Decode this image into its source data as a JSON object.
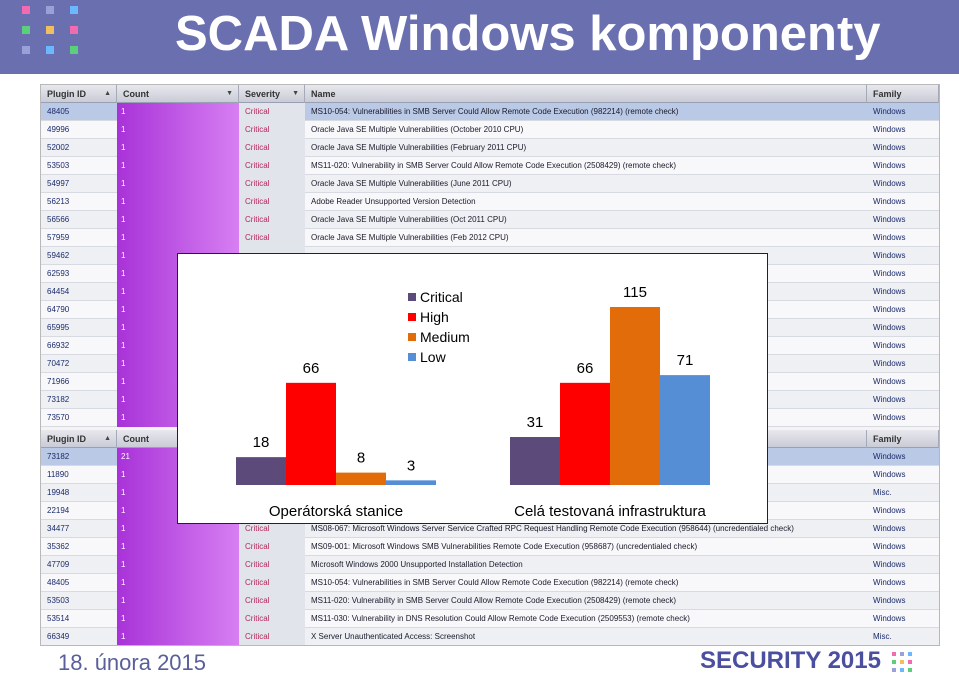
{
  "header": {
    "title": "SCADA Windows komponenty",
    "background": "#6a6fb0",
    "logo_dot_colors": [
      "#f06bb0",
      "#9aa0d8",
      "#6cb8ff",
      "#5ccf7a",
      "#f0c060"
    ]
  },
  "table1": {
    "columns": [
      "Plugin ID",
      "Count",
      "Severity",
      "Name",
      "Family"
    ],
    "rows": [
      {
        "id": "48405",
        "count": "1",
        "severity": "Critical",
        "name": "MS10-054: Vulnerabilities in SMB Server Could Allow Remote Code Execution (982214) (remote check)",
        "family": "Windows"
      },
      {
        "id": "49996",
        "count": "1",
        "severity": "Critical",
        "name": "Oracle Java SE Multiple Vulnerabilities (October 2010 CPU)",
        "family": "Windows"
      },
      {
        "id": "52002",
        "count": "1",
        "severity": "Critical",
        "name": "Oracle Java SE Multiple Vulnerabilities (February 2011 CPU)",
        "family": "Windows"
      },
      {
        "id": "53503",
        "count": "1",
        "severity": "Critical",
        "name": "MS11-020: Vulnerability in SMB Server Could Allow Remote Code Execution (2508429) (remote check)",
        "family": "Windows"
      },
      {
        "id": "54997",
        "count": "1",
        "severity": "Critical",
        "name": "Oracle Java SE Multiple Vulnerabilities (June 2011 CPU)",
        "family": "Windows"
      },
      {
        "id": "56213",
        "count": "1",
        "severity": "Critical",
        "name": "Adobe Reader Unsupported Version Detection",
        "family": "Windows"
      },
      {
        "id": "56566",
        "count": "1",
        "severity": "Critical",
        "name": "Oracle Java SE Multiple Vulnerabilities (Oct 2011 CPU)",
        "family": "Windows"
      },
      {
        "id": "57959",
        "count": "1",
        "severity": "Critical",
        "name": "Oracle Java SE Multiple Vulnerabilities (Feb 2012 CPU)",
        "family": "Windows"
      },
      {
        "id": "59462",
        "count": "1",
        "severity": "",
        "name": "",
        "family": "Windows"
      },
      {
        "id": "62593",
        "count": "1",
        "severity": "",
        "name": "",
        "family": "Windows"
      },
      {
        "id": "64454",
        "count": "1",
        "severity": "",
        "name": "",
        "family": "Windows"
      },
      {
        "id": "64790",
        "count": "1",
        "severity": "",
        "name": "",
        "family": "Windows"
      },
      {
        "id": "65995",
        "count": "1",
        "severity": "",
        "name": "",
        "family": "Windows"
      },
      {
        "id": "66932",
        "count": "1",
        "severity": "",
        "name": "",
        "family": "Windows"
      },
      {
        "id": "70472",
        "count": "1",
        "severity": "",
        "name": "",
        "family": "Windows"
      },
      {
        "id": "71966",
        "count": "1",
        "severity": "",
        "name": "",
        "family": "Windows"
      },
      {
        "id": "73182",
        "count": "1",
        "severity": "",
        "name": "",
        "family": "Windows"
      },
      {
        "id": "73570",
        "count": "1",
        "severity": "",
        "name": "",
        "family": "Windows"
      }
    ]
  },
  "table2": {
    "columns": [
      "Plugin ID",
      "Count",
      "Severity",
      "Name",
      "Family"
    ],
    "rows": [
      {
        "id": "73182",
        "count": "21",
        "severity": "",
        "name": "",
        "family": "Windows"
      },
      {
        "id": "11890",
        "count": "1",
        "severity": "",
        "name": "",
        "family": "Windows"
      },
      {
        "id": "19948",
        "count": "1",
        "severity": "",
        "name": "",
        "family": "Misc."
      },
      {
        "id": "22194",
        "count": "1",
        "severity": "",
        "name": "",
        "family": "Windows"
      },
      {
        "id": "34477",
        "count": "1",
        "severity": "Critical",
        "name": "MS08-067: Microsoft Windows Server Service Crafted RPC Request Handling Remote Code Execution (958644) (uncredentialed check)",
        "family": "Windows"
      },
      {
        "id": "35362",
        "count": "1",
        "severity": "Critical",
        "name": "MS09-001: Microsoft Windows SMB Vulnerabilities Remote Code Execution (958687) (uncredentialed check)",
        "family": "Windows"
      },
      {
        "id": "47709",
        "count": "1",
        "severity": "Critical",
        "name": "Microsoft Windows 2000 Unsupported Installation Detection",
        "family": "Windows"
      },
      {
        "id": "48405",
        "count": "1",
        "severity": "Critical",
        "name": "MS10-054: Vulnerabilities in SMB Server Could Allow Remote Code Execution (982214) (remote check)",
        "family": "Windows"
      },
      {
        "id": "53503",
        "count": "1",
        "severity": "Critical",
        "name": "MS11-020: Vulnerability in SMB Server Could Allow Remote Code Execution (2508429) (remote check)",
        "family": "Windows"
      },
      {
        "id": "53514",
        "count": "1",
        "severity": "Critical",
        "name": "MS11-030: Vulnerability in DNS Resolution Could Allow Remote Code Execution (2509553) (remote check)",
        "family": "Windows"
      },
      {
        "id": "66349",
        "count": "1",
        "severity": "Critical",
        "name": "X Server Unauthenticated Access: Screenshot",
        "family": "Misc."
      }
    ]
  },
  "chart_data": {
    "type": "bar",
    "series": [
      {
        "name": "Critical",
        "color": "#5b4a7a"
      },
      {
        "name": "High",
        "color": "#ff0000"
      },
      {
        "name": "Medium",
        "color": "#e36c0a"
      },
      {
        "name": "Low",
        "color": "#558ed5"
      }
    ],
    "groups": [
      {
        "label": "Operátorská stanice",
        "values": [
          18,
          66,
          8,
          3
        ]
      },
      {
        "label": "Celá testovaná infrastruktura",
        "values": [
          31,
          66,
          115,
          71
        ]
      }
    ],
    "ylim": [
      0,
      115
    ],
    "grid": false,
    "legend_position": "top-center"
  },
  "footer": {
    "date": "18. února 2015",
    "brand": "SECURITY 2015"
  }
}
